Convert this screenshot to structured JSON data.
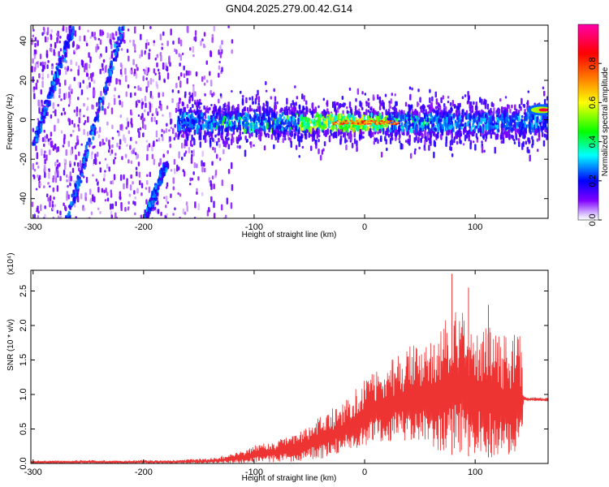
{
  "figure_title": "GN04.2025.279.00.42.G14",
  "chart_data": [
    {
      "type": "heatmap",
      "xlabel": "Height of straight line (km)",
      "ylabel": "Frequency (Hz)",
      "xlim": [
        -302,
        166
      ],
      "ylim": [
        -50,
        48
      ],
      "xticks": [
        -300,
        -200,
        -100,
        0,
        100
      ],
      "yticks": [
        -40,
        -20,
        0,
        20,
        40
      ],
      "colorbar": {
        "label": "Normalized spectral amplitude",
        "range": [
          0.0,
          1.0
        ],
        "ticks": [
          0.0,
          0.2,
          0.4,
          0.6,
          0.8
        ],
        "colormap": [
          "#ffffff",
          "#8000ff",
          "#0000ff",
          "#00ffff",
          "#00ff00",
          "#ffff00",
          "#ff8000",
          "#ff0000",
          "#ff00aa"
        ]
      },
      "features": {
        "noise_region_x": [
          -302,
          -120
        ],
        "diagonal_tracks": [
          {
            "x": [
              -300,
              -265
            ],
            "y": [
              -10,
              48
            ]
          },
          {
            "x": [
              -270,
              -220
            ],
            "y": [
              -50,
              48
            ]
          },
          {
            "x": [
              -200,
              -180
            ],
            "y": [
              -50,
              -20
            ]
          }
        ],
        "center_band_x": [
          -170,
          165
        ],
        "center_band_y": 0,
        "peak_x": [
          -60,
          20
        ],
        "high_point": {
          "x": 160,
          "y": 5
        }
      }
    },
    {
      "type": "area",
      "xlabel": "Height of straight line (km)",
      "ylabel": "SNR (10 * v/v)",
      "y_multiplier": "(x10⁴)",
      "xlim": [
        -302,
        166
      ],
      "ylim": [
        0.0,
        2.8
      ],
      "xticks": [
        -300,
        -200,
        -100,
        0,
        100
      ],
      "yticks": [
        0.0,
        0.5,
        1.0,
        1.5,
        2.0,
        2.5
      ],
      "color": "#ee3333",
      "x": [
        -302,
        -280,
        -250,
        -220,
        -200,
        -180,
        -160,
        -140,
        -120,
        -100,
        -80,
        -60,
        -40,
        -20,
        0,
        20,
        40,
        60,
        80,
        100,
        120,
        142,
        144,
        166
      ],
      "upper": [
        0.04,
        0.04,
        0.05,
        0.04,
        0.05,
        0.05,
        0.06,
        0.08,
        0.14,
        0.26,
        0.33,
        0.45,
        0.7,
        0.88,
        1.22,
        1.45,
        1.7,
        1.82,
        2.35,
        2.1,
        1.9,
        1.85,
        0.97,
        0.95
      ],
      "lower": [
        0.0,
        0.0,
        0.0,
        0.0,
        0.0,
        0.0,
        0.0,
        0.0,
        0.0,
        0.01,
        0.02,
        0.03,
        0.06,
        0.14,
        0.25,
        0.32,
        0.3,
        0.22,
        0.12,
        0.1,
        0.08,
        0.06,
        0.9,
        0.9
      ],
      "peaks": [
        {
          "x": 79,
          "y": 2.75
        },
        {
          "x": 94,
          "y": 2.55
        },
        {
          "x": 112,
          "y": 2.3
        }
      ]
    }
  ]
}
